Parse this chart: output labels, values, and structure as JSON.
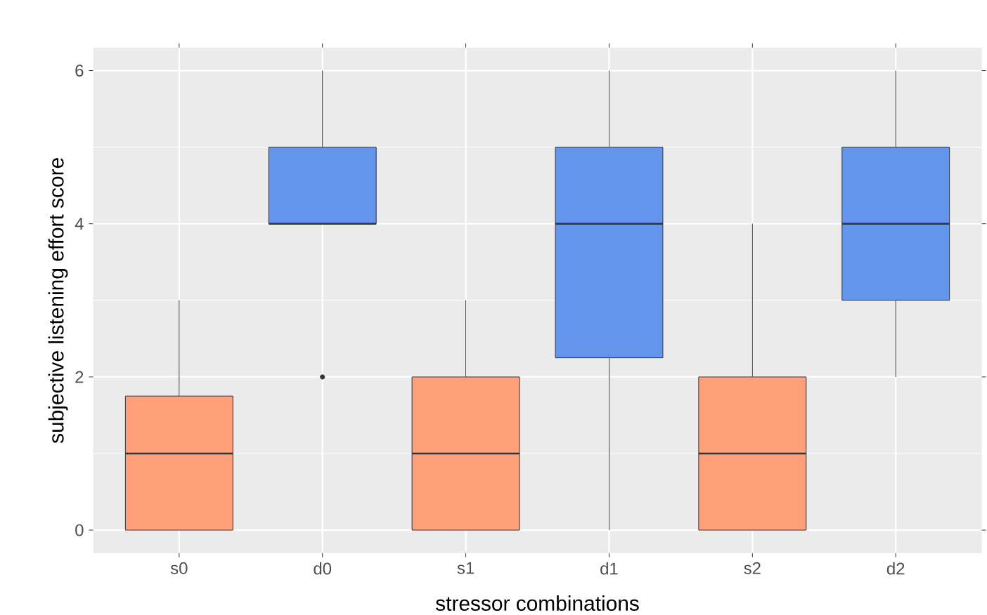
{
  "chart_data": {
    "type": "box",
    "xlabel": "stressor combinations",
    "ylabel": "subjective listening effort score",
    "categories": [
      "s0",
      "d0",
      "s1",
      "d1",
      "s2",
      "d2"
    ],
    "colors": [
      "#ffa07a",
      "#6495ed",
      "#ffa07a",
      "#6495ed",
      "#ffa07a",
      "#6495ed"
    ],
    "boxes": [
      {
        "low": 0,
        "q1": 0,
        "median": 1,
        "q3": 1.75,
        "high": 3
      },
      {
        "low": 4,
        "q1": 4,
        "median": 4,
        "q3": 5,
        "high": 6,
        "outliers": [
          2
        ]
      },
      {
        "low": 0,
        "q1": 0,
        "median": 1,
        "q3": 2,
        "high": 3
      },
      {
        "low": 0,
        "q1": 2.25,
        "median": 4,
        "q3": 5,
        "high": 6
      },
      {
        "low": 0,
        "q1": 0,
        "median": 1,
        "q3": 2,
        "high": 4
      },
      {
        "low": 2,
        "q1": 3,
        "median": 4,
        "q3": 5,
        "high": 6
      }
    ],
    "ylim": [
      -0.3,
      6.3
    ],
    "yticks": [
      0,
      2,
      4,
      6
    ],
    "grid": true
  }
}
